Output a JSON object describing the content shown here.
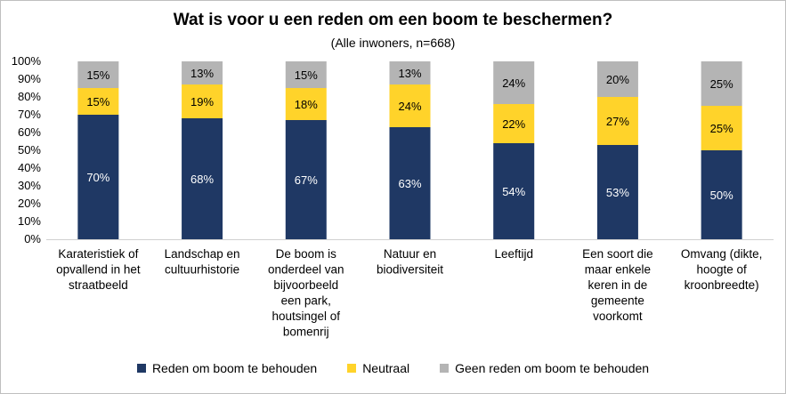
{
  "chart_data": {
    "type": "bar",
    "stacked": true,
    "title": "Wat is voor u een reden om een boom te beschermen?",
    "subtitle": "(Alle inwoners, n=668)",
    "categories": [
      "Karateristiek of opvallend in het straatbeeld",
      "Landschap en cultuurhistorie",
      "De boom is onderdeel van bijvoorbeeld een park, houtsingel of bomenrij",
      "Natuur en biodiversiteit",
      "Leeftijd",
      "Een soort die maar enkele keren in de gemeente voorkomt",
      "Omvang (dikte, hoogte of kroonbreedte)"
    ],
    "category_lines": [
      [
        "Karateristiek of",
        "opvallend in het",
        "straatbeeld"
      ],
      [
        "Landschap en",
        "cultuurhistorie"
      ],
      [
        "De boom is",
        "onderdeel van",
        "bijvoorbeeld",
        "een park,",
        "houtsingel of",
        "bomenrij"
      ],
      [
        "Natuur en",
        "biodiversiteit"
      ],
      [
        "Leeftijd"
      ],
      [
        "Een soort die",
        "maar enkele",
        "keren in de",
        "gemeente",
        "voorkomt"
      ],
      [
        "Omvang (dikte,",
        "hoogte of",
        "kroonbreedte)"
      ]
    ],
    "series": [
      {
        "name": "Reden om boom te behouden",
        "color": "#1f3864",
        "label_color": "#ffffff",
        "values": [
          70,
          68,
          67,
          63,
          54,
          53,
          50
        ]
      },
      {
        "name": "Neutraal",
        "color": "#ffd32a",
        "label_color": "#000000",
        "values": [
          15,
          19,
          18,
          24,
          22,
          27,
          25
        ]
      },
      {
        "name": "Geen reden om boom te behouden",
        "color": "#b4b4b4",
        "label_color": "#000000",
        "values": [
          15,
          13,
          15,
          13,
          24,
          20,
          25
        ]
      }
    ],
    "yticks": [
      "0%",
      "10%",
      "20%",
      "30%",
      "40%",
      "50%",
      "60%",
      "70%",
      "80%",
      "90%",
      "100%"
    ],
    "ylim": [
      0,
      100
    ],
    "legend_position": "bottom",
    "grid": false
  }
}
